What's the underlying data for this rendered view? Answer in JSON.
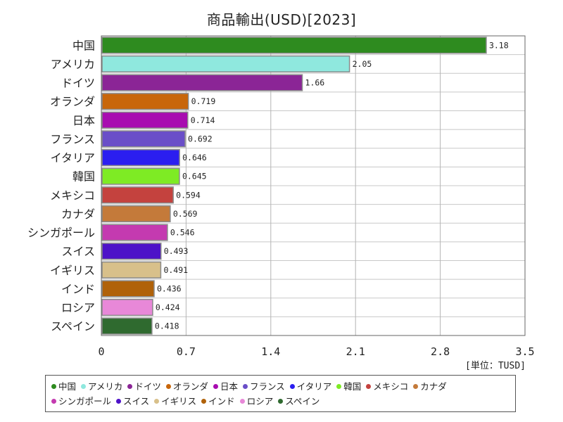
{
  "chart_data": {
    "type": "bar",
    "orientation": "horizontal",
    "title": "商品輸出(USD)[2023]",
    "unit_label": "[単位：TUSD]",
    "xlim": [
      0,
      3.5
    ],
    "x_ticks": [
      "0",
      "0.7",
      "1.4",
      "2.1",
      "2.8",
      "3.5"
    ],
    "x_tick_values": [
      0,
      0.7,
      1.4,
      2.1,
      2.8,
      3.5
    ],
    "grid": true,
    "legend_position": "bottom",
    "categories": [
      "中国",
      "アメリカ",
      "ドイツ",
      "オランダ",
      "日本",
      "フランス",
      "イタリア",
      "韓国",
      "メキシコ",
      "カナダ",
      "シンガポール",
      "スイス",
      "イギリス",
      "インド",
      "ロシア",
      "スペイン"
    ],
    "values": [
      3.18,
      2.05,
      1.66,
      0.719,
      0.714,
      0.692,
      0.646,
      0.645,
      0.594,
      0.569,
      0.546,
      0.493,
      0.491,
      0.436,
      0.424,
      0.418
    ],
    "value_labels": [
      "3.18",
      "2.05",
      "1.66",
      "0.719",
      "0.714",
      "0.692",
      "0.646",
      "0.645",
      "0.594",
      "0.569",
      "0.546",
      "0.493",
      "0.491",
      "0.436",
      "0.424",
      "0.418"
    ],
    "colors": [
      "#2e8b1f",
      "#8fe8de",
      "#8b2596",
      "#c8660a",
      "#a80cb0",
      "#6a4ec8",
      "#2b1ef0",
      "#7eeb24",
      "#c4423e",
      "#c47a3a",
      "#c43ab0",
      "#4d12c8",
      "#d8c08a",
      "#b0620a",
      "#e888d8",
      "#2f6a2f"
    ]
  }
}
